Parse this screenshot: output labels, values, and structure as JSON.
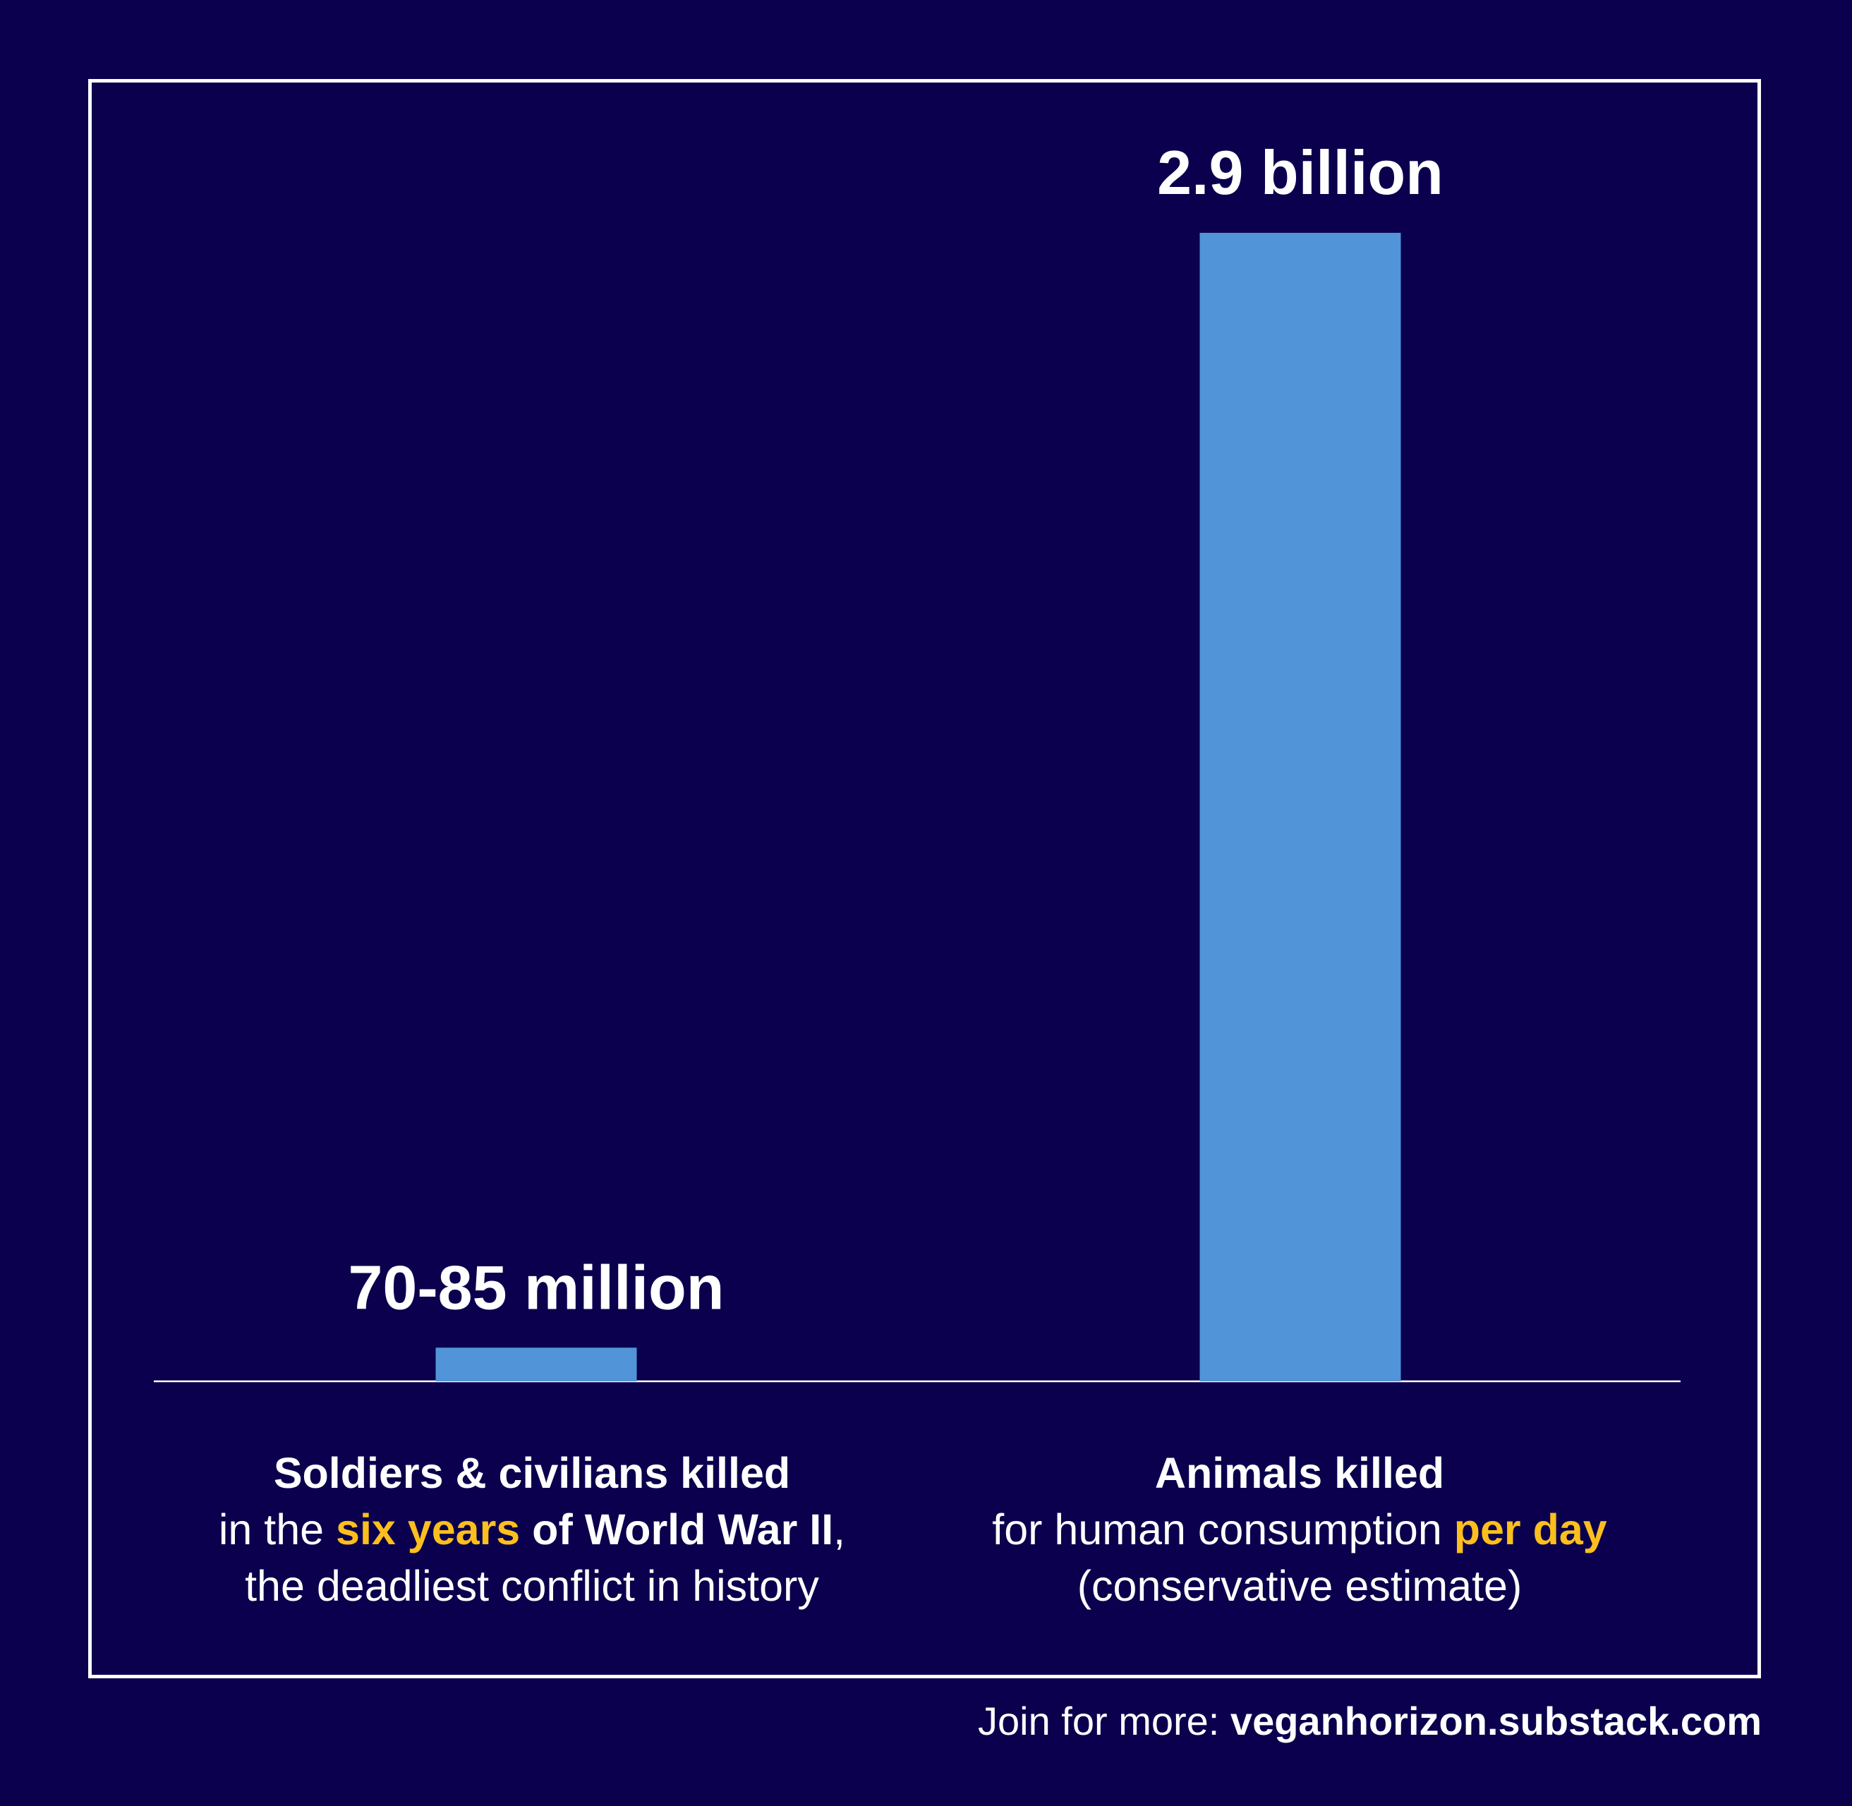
{
  "colors": {
    "background": "#0a004d",
    "bar": "#5294d8",
    "highlight": "#fdbf1e",
    "text": "#ffffff"
  },
  "chart_data": {
    "type": "bar",
    "categories": [
      "Soldiers & civilians killed",
      "Animals killed"
    ],
    "values": [
      85000000,
      2900000000
    ],
    "value_labels": [
      "70-85 million",
      "2.9 billion"
    ],
    "ylim": [
      0,
      2900000000
    ],
    "grid": false,
    "legend": "none"
  },
  "categories": [
    {
      "title": "Soldiers & civilians killed",
      "line2_pre": "in the ",
      "line2_highlight": "six years",
      "line2_bold": " of World War II",
      "line2_post": ",",
      "line3": "the deadliest conflict in history"
    },
    {
      "title": "Animals killed",
      "line2_pre": "for human consumption ",
      "line2_highlight": "per day",
      "line3": "(conservative estimate)"
    }
  ],
  "footer": {
    "prefix": "Join for more: ",
    "link": "veganhorizon.substack.com"
  }
}
